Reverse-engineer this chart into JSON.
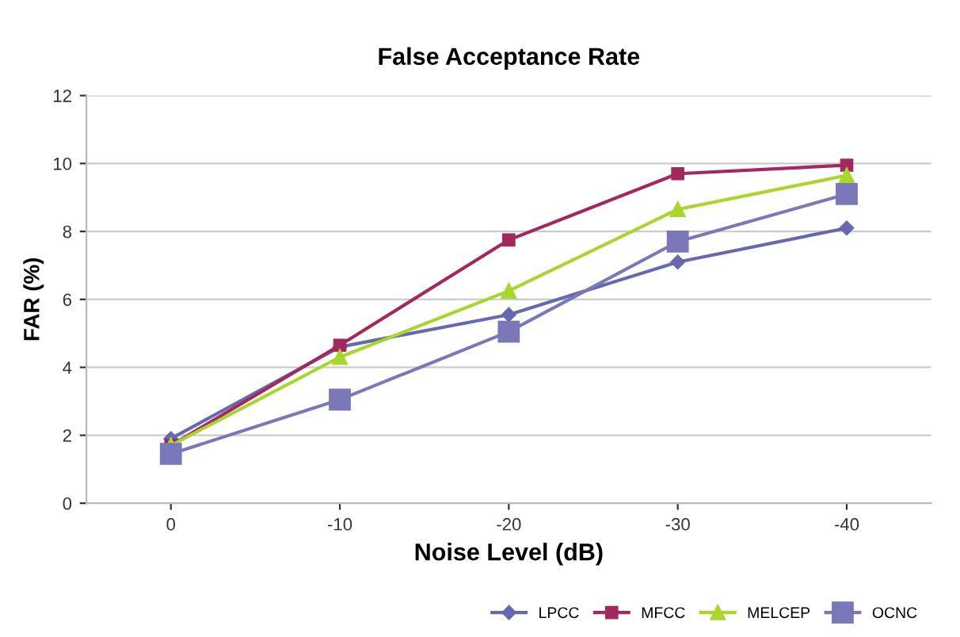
{
  "chart_data": {
    "type": "line",
    "title": "False Acceptance Rate",
    "xlabel": "Noise Level (dB)",
    "ylabel": "FAR (%)",
    "categories": [
      "0",
      "-10",
      "-20",
      "-30",
      "-40"
    ],
    "series": [
      {
        "name": "LPCC",
        "color": "#6668b0",
        "marker": "diamond",
        "values": [
          1.9,
          4.6,
          5.55,
          7.1,
          8.1
        ]
      },
      {
        "name": "MFCC",
        "color": "#a3285e",
        "marker": "square",
        "values": [
          1.7,
          4.65,
          7.75,
          9.7,
          9.95
        ]
      },
      {
        "name": "MELCEP",
        "color": "#a8d62a",
        "marker": "triangle",
        "values": [
          1.7,
          4.3,
          6.25,
          8.65,
          9.65
        ]
      },
      {
        "name": "OCNC",
        "color": "#7a78b8",
        "marker": "square",
        "values": [
          1.45,
          3.05,
          5.05,
          7.7,
          9.1
        ]
      }
    ],
    "ylim": [
      0,
      12
    ],
    "yticks": [
      0,
      2,
      4,
      6,
      8,
      10,
      12
    ],
    "grid": "y",
    "legend": "bottom right",
    "line_style": "solid"
  }
}
